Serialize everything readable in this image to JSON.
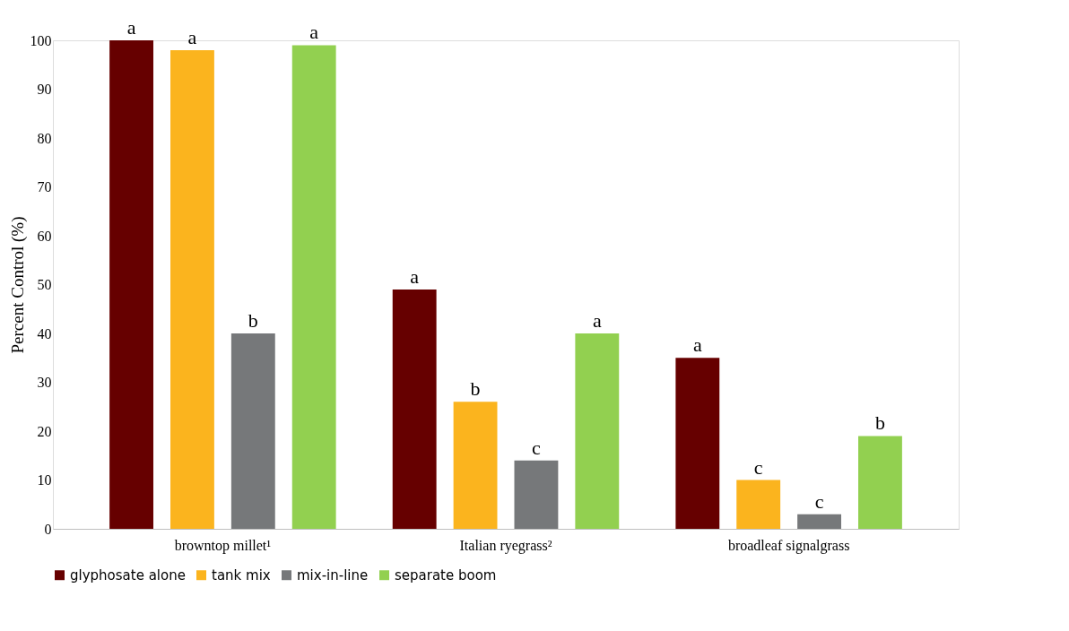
{
  "chart_data": {
    "type": "bar",
    "ylabel": "Percent Control (%)",
    "categories": [
      "browntop millet¹",
      "Italian ryegrass²",
      "broadleaf signalgrass"
    ],
    "series": [
      {
        "name": "glyphosate alone",
        "color": "#660000",
        "values": [
          100,
          49,
          35
        ],
        "value_labels": [
          "a",
          "a",
          "a"
        ]
      },
      {
        "name": "tank mix",
        "color": "#fbb41e",
        "values": [
          98,
          26,
          10
        ],
        "value_labels": [
          "a",
          "b",
          "c"
        ]
      },
      {
        "name": "mix-in-line",
        "color": "#76787a",
        "values": [
          40,
          14,
          3
        ],
        "value_labels": [
          "b",
          "c",
          "c"
        ]
      },
      {
        "name": "separate boom",
        "color": "#92d050",
        "values": [
          99,
          40,
          19
        ],
        "value_labels": [
          "a",
          "a",
          "b"
        ]
      }
    ],
    "ylim": [
      0,
      100
    ],
    "yticks": [
      0,
      10,
      20,
      30,
      40,
      50,
      60,
      70,
      80,
      90,
      100
    ],
    "grid": false,
    "legend": "bottom"
  }
}
